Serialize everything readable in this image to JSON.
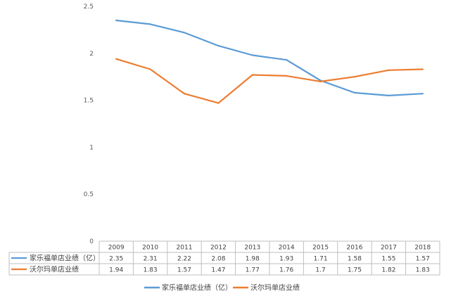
{
  "chart_data": {
    "type": "line",
    "title": "",
    "xlabel": "",
    "ylabel": "",
    "ylim": [
      0,
      2.5
    ],
    "yticks": [
      "0",
      "0.5",
      "1",
      "1.5",
      "2",
      "2.5"
    ],
    "grid": false,
    "legend_position": "bottom",
    "data_table": true,
    "categories": [
      "2009",
      "2010",
      "2011",
      "2012",
      "2013",
      "2014",
      "2015",
      "2016",
      "2017",
      "2018"
    ],
    "series": [
      {
        "name": "家乐福单店业绩（亿）",
        "color": "#5B9BD5",
        "values": [
          2.35,
          2.31,
          2.22,
          2.08,
          1.98,
          1.93,
          1.71,
          1.58,
          1.55,
          1.57
        ],
        "labels": [
          "2.35",
          "2.31",
          "2.22",
          "2.08",
          "1.98",
          "1.93",
          "1.71",
          "1.58",
          "1.55",
          "1.57"
        ]
      },
      {
        "name": "沃尔玛单店业绩",
        "color": "#ED7D31",
        "values": [
          1.94,
          1.83,
          1.57,
          1.47,
          1.77,
          1.76,
          1.7,
          1.75,
          1.82,
          1.83
        ],
        "labels": [
          "1.94",
          "1.83",
          "1.57",
          "1.47",
          "1.77",
          "1.76",
          "1.7",
          "1.75",
          "1.82",
          "1.83"
        ]
      }
    ]
  }
}
